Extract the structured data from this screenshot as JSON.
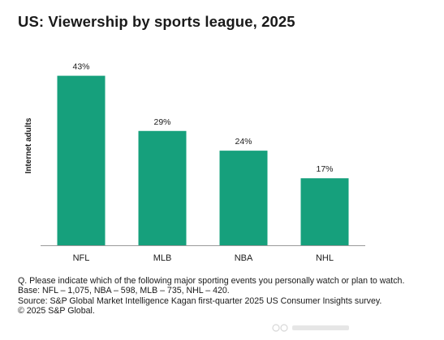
{
  "title": "US: Viewership by sports league, 2025",
  "chart_data": {
    "type": "bar",
    "categories": [
      "NFL",
      "MLB",
      "NBA",
      "NHL"
    ],
    "values": [
      43,
      29,
      24,
      17
    ],
    "data_labels": [
      "43%",
      "29%",
      "24%",
      "17%"
    ],
    "ylabel": "Internet adults",
    "ylim": [
      0,
      50
    ],
    "grid": false,
    "bar_color": "#16a07c",
    "axis_color": "#9a9a9a"
  },
  "notes": {
    "question": "Q. Please indicate which of the following major sporting events you personally watch or plan to watch.",
    "base": "Base: NFL – 1,075, NBA – 598, MLB – 735, NHL – 420.",
    "source": "Source: S&P Global Market Intelligence Kagan first-quarter 2025 US Consumer Insights survey.",
    "copyright": "© 2025 S&P Global."
  }
}
